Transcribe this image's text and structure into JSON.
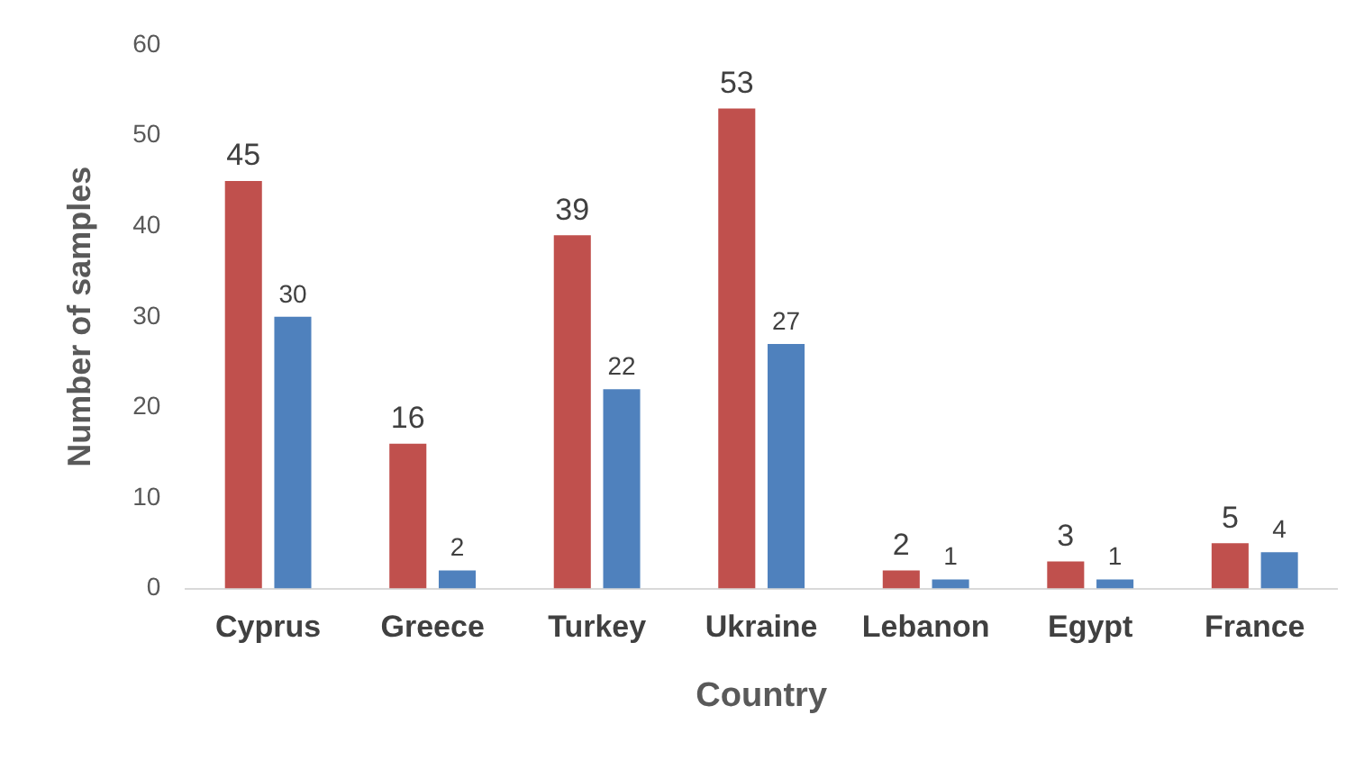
{
  "chart_data": {
    "type": "bar",
    "xlabel": "Country",
    "ylabel": "Number of samples",
    "categories": [
      "Cyprus",
      "Greece",
      "Turkey",
      "Ukraine",
      "Lebanon",
      "Egypt",
      "France"
    ],
    "series": [
      {
        "color": "#c0504d",
        "values": [
          45,
          16,
          39,
          53,
          2,
          3,
          5
        ]
      },
      {
        "color": "#4f81bd",
        "values": [
          30,
          2,
          22,
          27,
          1,
          1,
          4
        ]
      }
    ],
    "ylim": [
      0,
      60
    ],
    "yticks": [
      0,
      10,
      20,
      30,
      40,
      50,
      60
    ],
    "grid": false,
    "legend": false,
    "data_labels": true
  }
}
